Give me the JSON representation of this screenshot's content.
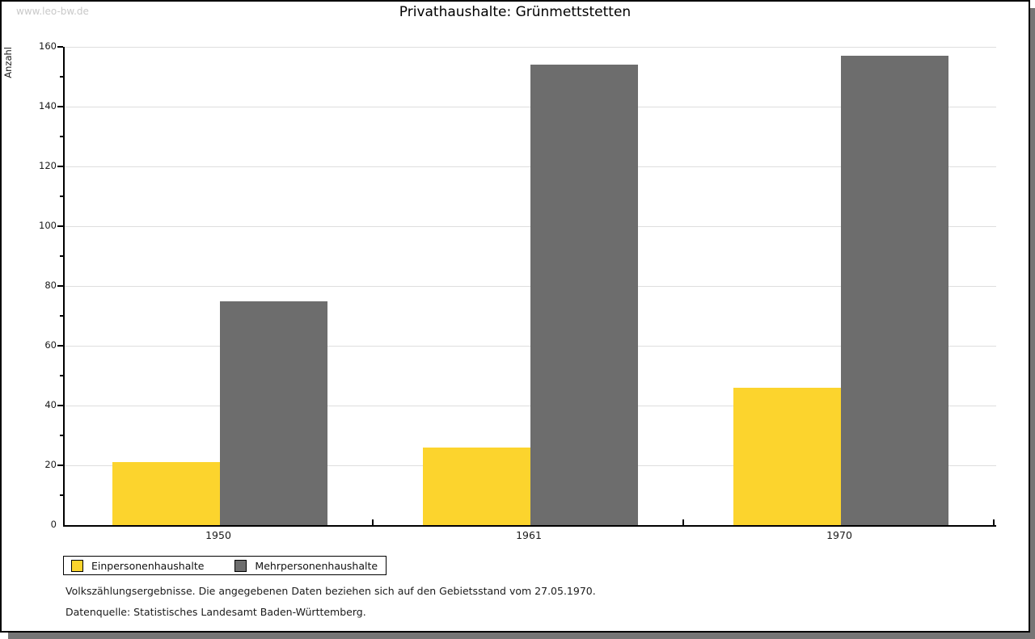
{
  "watermark": "www.leo-bw.de",
  "chart_data": {
    "type": "bar",
    "title": "Privathaushalte: Grünmettstetten",
    "ylabel": "Anzahl",
    "xlabel": "",
    "categories": [
      "1950",
      "1961",
      "1970"
    ],
    "series": [
      {
        "name": "Einpersonenhaushalte",
        "color": "#FCD42D",
        "values": [
          21,
          26,
          46
        ]
      },
      {
        "name": "Mehrpersonenhaushalte",
        "color": "#6D6D6D",
        "values": [
          75,
          154,
          157
        ]
      }
    ],
    "ylim": [
      0,
      160
    ],
    "y_major_step": 20,
    "y_minor_step": 10,
    "grid": true,
    "legend_position": "bottom-left"
  },
  "footer": {
    "line1": "Volkszählungsergebnisse. Die angegebenen Daten beziehen sich auf den Gebietsstand vom 27.05.1970.",
    "line2": "Datenquelle: Statistisches Landesamt Baden-Württemberg."
  }
}
